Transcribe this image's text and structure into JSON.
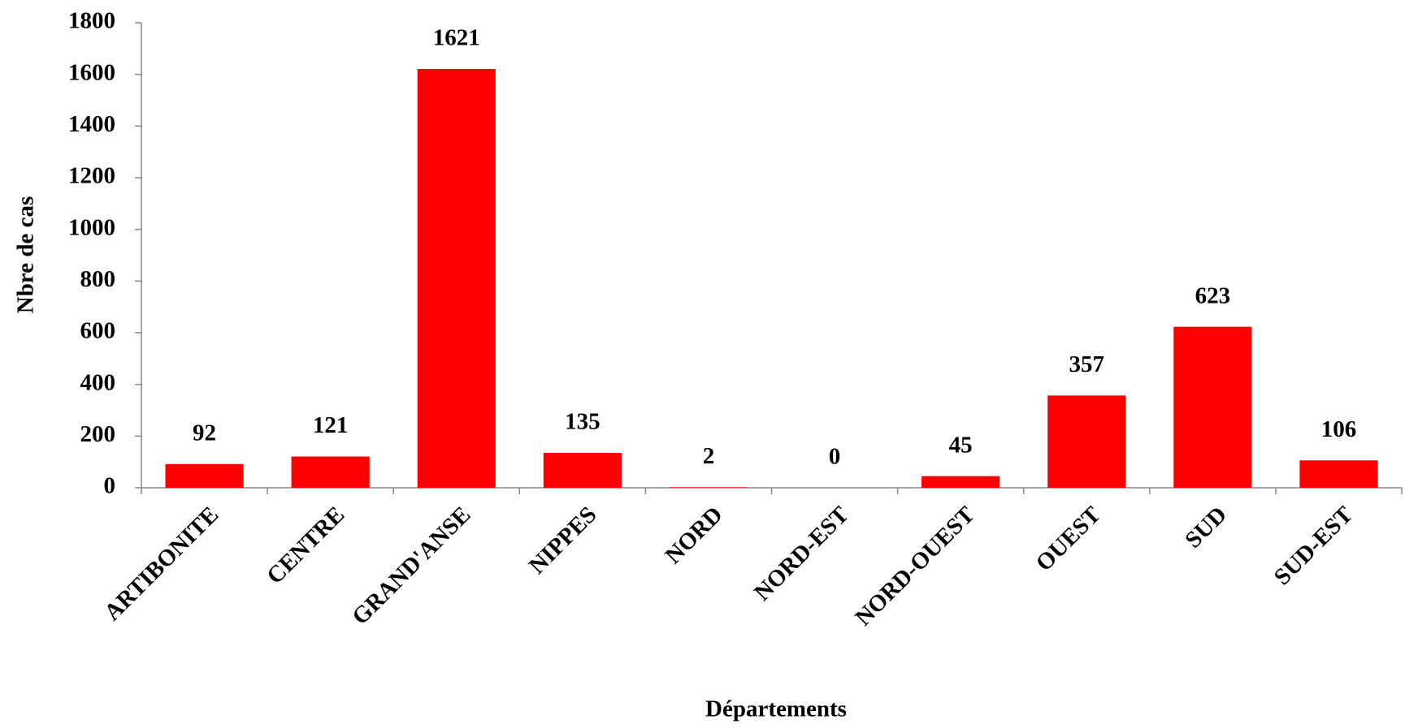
{
  "chart_data": {
    "type": "bar",
    "x_label": "Départements",
    "y_label": "Nbre de cas",
    "categories": [
      "ARTIBONITE",
      "CENTRE",
      "GRAND'ANSE",
      "NIPPES",
      "NORD",
      "NORD-EST",
      "NORD-OUEST",
      "OUEST",
      "SUD",
      "SUD-EST"
    ],
    "values": [
      92,
      121,
      1621,
      135,
      2,
      0,
      45,
      357,
      623,
      106
    ],
    "color": "#ff0000",
    "ylim": [
      0,
      1800
    ],
    "yticks": [
      0,
      200,
      400,
      600,
      800,
      1000,
      1200,
      1400,
      1600,
      1800
    ],
    "grid": false
  }
}
